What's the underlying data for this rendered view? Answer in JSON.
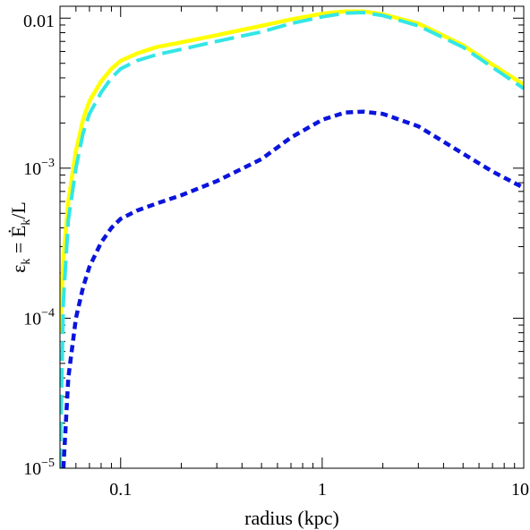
{
  "chart_data": {
    "type": "line",
    "xscale": "log",
    "yscale": "log",
    "xlim": [
      0.05,
      10
    ],
    "ylim": [
      1e-05,
      0.012
    ],
    "xlabel": "radius (kpc)",
    "ylabel": "ε_k = Ė_k/L",
    "xticks": [
      {
        "value": 0.1,
        "label": "0.1"
      },
      {
        "value": 1,
        "label": "1"
      },
      {
        "value": 10,
        "label": "10"
      }
    ],
    "yticks": [
      {
        "value": 1e-05,
        "base": "10",
        "exp": "−5"
      },
      {
        "value": 0.0001,
        "base": "10",
        "exp": "−4"
      },
      {
        "value": 0.001,
        "base": "10",
        "exp": "−3"
      },
      {
        "value": 0.01,
        "label": "0.01"
      }
    ],
    "grid": false,
    "series": [
      {
        "color": "#ffff00",
        "style": "solid",
        "x": [
          0.05,
          0.052,
          0.055,
          0.06,
          0.065,
          0.07,
          0.08,
          0.09,
          0.1,
          0.12,
          0.15,
          0.2,
          0.3,
          0.5,
          0.7,
          1.0,
          1.3,
          1.6,
          2.0,
          3.0,
          5.0,
          7.0,
          10.0
        ],
        "y": [
          8e-05,
          0.00025,
          0.0006,
          0.0013,
          0.0021,
          0.0028,
          0.0038,
          0.0046,
          0.0052,
          0.0058,
          0.0064,
          0.0069,
          0.0077,
          0.0089,
          0.0098,
          0.0107,
          0.0111,
          0.0111,
          0.0106,
          0.0092,
          0.0066,
          0.0049,
          0.0036
        ]
      },
      {
        "color": "#33e6e6",
        "style": "dashed",
        "x": [
          0.05,
          0.052,
          0.055,
          0.06,
          0.065,
          0.07,
          0.08,
          0.09,
          0.1,
          0.12,
          0.15,
          0.2,
          0.3,
          0.5,
          0.7,
          1.0,
          1.3,
          1.6,
          2.0,
          3.0,
          5.0,
          7.0,
          10.0
        ],
        "y": [
          1e-05,
          0.00013,
          0.00045,
          0.001,
          0.0017,
          0.0023,
          0.0032,
          0.004,
          0.0046,
          0.0052,
          0.0057,
          0.0062,
          0.007,
          0.0081,
          0.0092,
          0.0102,
          0.0108,
          0.0109,
          0.0104,
          0.0089,
          0.0064,
          0.0047,
          0.0034
        ]
      },
      {
        "color": "#0a14dc",
        "style": "dotted",
        "x": [
          0.052,
          0.055,
          0.06,
          0.065,
          0.07,
          0.08,
          0.09,
          0.1,
          0.12,
          0.15,
          0.2,
          0.3,
          0.5,
          0.7,
          1.0,
          1.3,
          1.6,
          2.0,
          3.0,
          5.0,
          7.0,
          10.0
        ],
        "y": [
          1e-05,
          4e-05,
          0.0001,
          0.00016,
          0.00022,
          0.00032,
          0.0004,
          0.00046,
          0.00052,
          0.00058,
          0.00066,
          0.00082,
          0.00115,
          0.0016,
          0.0021,
          0.00235,
          0.00238,
          0.0023,
          0.0019,
          0.00125,
          0.00095,
          0.00074
        ]
      }
    ]
  }
}
